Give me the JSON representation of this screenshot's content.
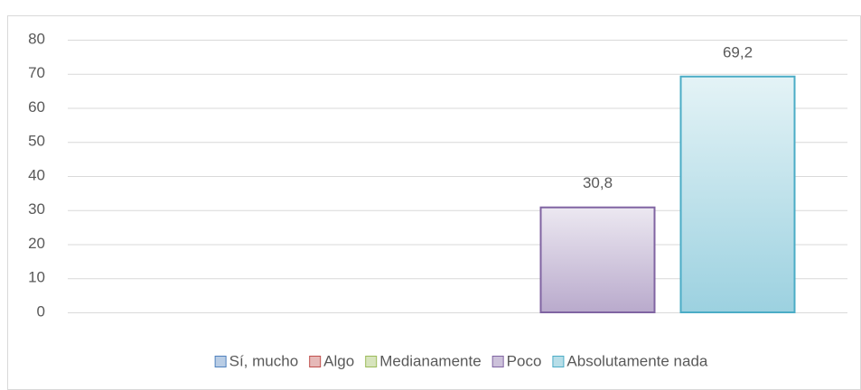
{
  "chart_data": {
    "type": "bar",
    "series": [
      {
        "name": "Sí, mucho",
        "color": "#4f81bd",
        "values": [
          0
        ],
        "value_labels": [
          null
        ]
      },
      {
        "name": "Algo",
        "color": "#c0504d",
        "values": [
          0
        ],
        "value_labels": [
          null
        ]
      },
      {
        "name": "Medianamente",
        "color": "#9bbb59",
        "values": [
          0
        ],
        "value_labels": [
          null
        ]
      },
      {
        "name": "Poco",
        "color": "#8064a2",
        "values": [
          30.8
        ],
        "value_labels": [
          "30,8"
        ]
      },
      {
        "name": "Absolutamente nada",
        "color": "#4bacc6",
        "values": [
          69.2
        ],
        "value_labels": [
          "69,2"
        ]
      }
    ],
    "ylim": [
      0,
      80
    ],
    "yticks": [
      0,
      10,
      20,
      30,
      40,
      50,
      60,
      70,
      80
    ],
    "grid": true,
    "legend": "bottom"
  }
}
